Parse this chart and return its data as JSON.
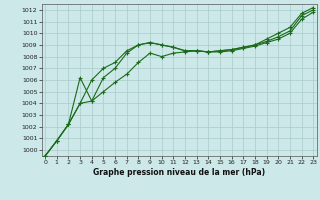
{
  "title": "Graphe pression niveau de la mer (hPa)",
  "bg_color": "#cce8e8",
  "grid_color": "#aacccc",
  "line_color": "#1a6b1a",
  "ylim": [
    999.5,
    1012.5
  ],
  "xlim": [
    -0.3,
    23.3
  ],
  "yticks": [
    1000,
    1001,
    1002,
    1003,
    1004,
    1005,
    1006,
    1007,
    1008,
    1009,
    1010,
    1011,
    1012
  ],
  "xticks": [
    0,
    1,
    2,
    3,
    4,
    5,
    6,
    7,
    8,
    9,
    10,
    11,
    12,
    13,
    14,
    15,
    16,
    17,
    18,
    19,
    20,
    21,
    22,
    23
  ],
  "series": [
    {
      "x": [
        0,
        1,
        2,
        3,
        4,
        5,
        6,
        7,
        8,
        9,
        10,
        11,
        12,
        13,
        14,
        15,
        16,
        17,
        18,
        19,
        20,
        21,
        22,
        23
      ],
      "y": [
        999.5,
        1000.8,
        1002.2,
        1004.0,
        1004.2,
        1005.0,
        1005.8,
        1006.5,
        1007.5,
        1008.3,
        1008.0,
        1008.3,
        1008.4,
        1008.5,
        1008.4,
        1008.4,
        1008.5,
        1008.7,
        1008.9,
        1009.2,
        1009.5,
        1010.0,
        1011.2,
        1011.8
      ]
    },
    {
      "x": [
        0,
        1,
        2,
        3,
        4,
        5,
        6,
        7,
        8,
        9,
        10,
        11,
        12,
        13,
        14,
        15,
        16,
        17,
        18,
        19,
        20,
        21,
        22,
        23
      ],
      "y": [
        999.5,
        1000.8,
        1002.2,
        1004.0,
        1006.0,
        1007.0,
        1007.5,
        1008.5,
        1009.0,
        1009.2,
        1009.0,
        1008.8,
        1008.5,
        1008.5,
        1008.4,
        1008.5,
        1008.6,
        1008.8,
        1009.0,
        1009.3,
        1009.7,
        1010.2,
        1011.5,
        1012.0
      ]
    },
    {
      "x": [
        0,
        1,
        2,
        3,
        4,
        5,
        6,
        7,
        8,
        9,
        10,
        11,
        12,
        13,
        14,
        15,
        16,
        17,
        18,
        19,
        20,
        21,
        22,
        23
      ],
      "y": [
        999.5,
        1000.8,
        1002.2,
        1006.2,
        1004.2,
        1006.2,
        1007.0,
        1008.3,
        1009.0,
        1009.2,
        1009.0,
        1008.8,
        1008.5,
        1008.5,
        1008.4,
        1008.5,
        1008.6,
        1008.8,
        1009.0,
        1009.5,
        1010.0,
        1010.5,
        1011.7,
        1012.2
      ]
    }
  ]
}
